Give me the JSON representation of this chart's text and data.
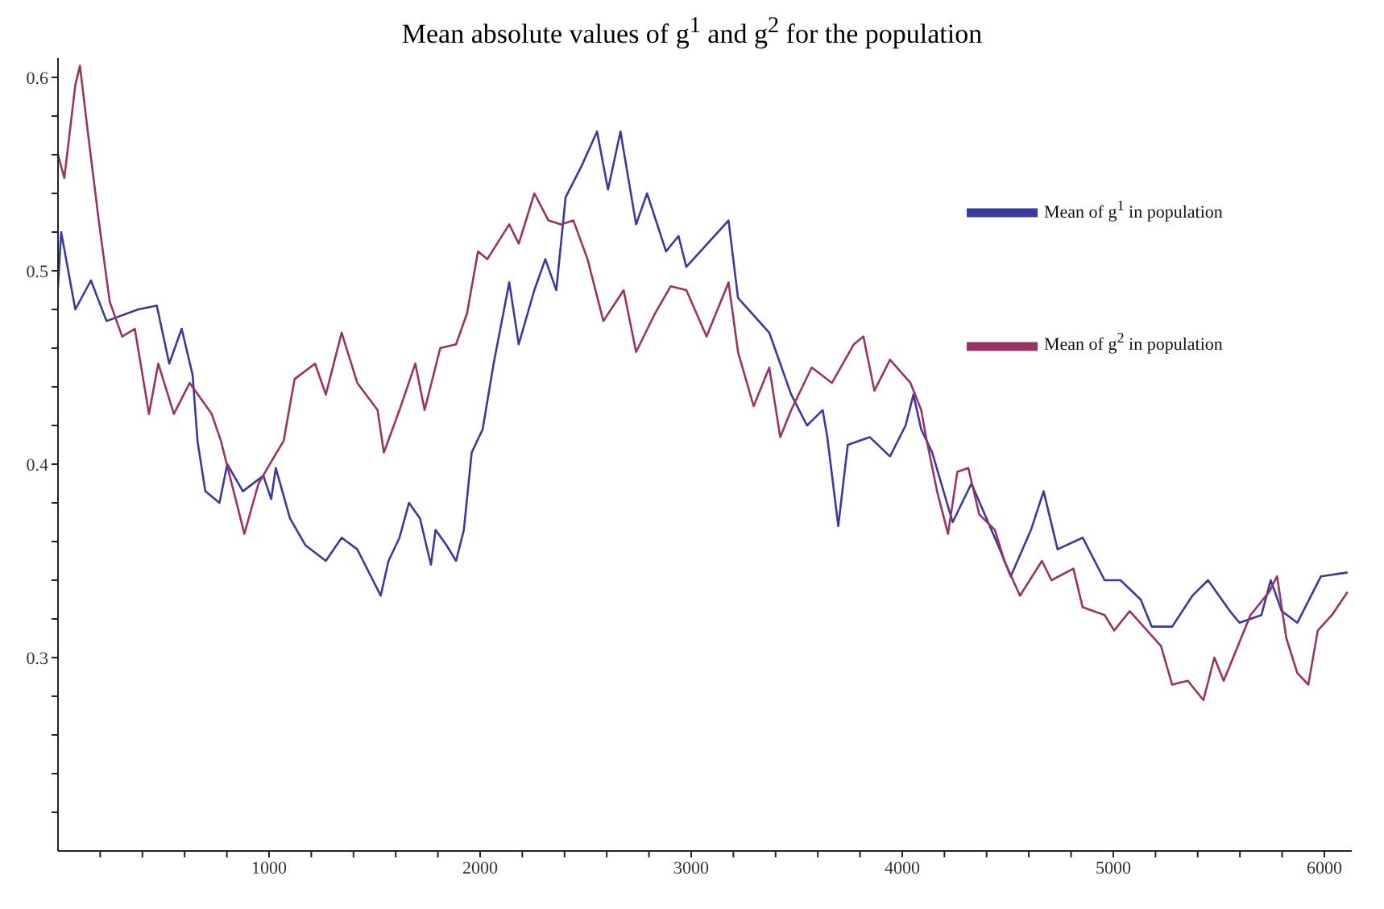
{
  "chart_data": {
    "type": "line",
    "title": "Mean absolute values of g$^{1}$ and g$^{2}$ for the population",
    "xlim": [
      0,
      6130
    ],
    "ylim": [
      0.2,
      0.61
    ],
    "xticks": [
      {
        "value": 200,
        "label": null
      },
      {
        "value": 400,
        "label": null
      },
      {
        "value": 600,
        "label": null
      },
      {
        "value": 800,
        "label": null
      },
      1000,
      {
        "value": 1200,
        "label": null
      },
      {
        "value": 1400,
        "label": null
      },
      {
        "value": 1600,
        "label": null
      },
      {
        "value": 1800,
        "label": null
      },
      2000,
      {
        "value": 2200,
        "label": null
      },
      {
        "value": 2400,
        "label": null
      },
      {
        "value": 2600,
        "label": null
      },
      {
        "value": 2800,
        "label": null
      },
      3000,
      {
        "value": 3200,
        "label": null
      },
      {
        "value": 3400,
        "label": null
      },
      {
        "value": 3600,
        "label": null
      },
      {
        "value": 3800,
        "label": null
      },
      4000,
      {
        "value": 4200,
        "label": null
      },
      {
        "value": 4400,
        "label": null
      },
      {
        "value": 4600,
        "label": null
      },
      {
        "value": 4800,
        "label": null
      },
      5000,
      {
        "value": 5200,
        "label": null
      },
      {
        "value": 5400,
        "label": null
      },
      {
        "value": 5600,
        "label": null
      },
      {
        "value": 5800,
        "label": null
      },
      6000
    ],
    "yticks": [
      {
        "value": 0.22,
        "label": null
      },
      {
        "value": 0.24,
        "label": null
      },
      {
        "value": 0.26,
        "label": null
      },
      {
        "value": 0.28,
        "label": null
      },
      0.3,
      {
        "value": 0.32,
        "label": null
      },
      {
        "value": 0.34,
        "label": null
      },
      {
        "value": 0.36,
        "label": null
      },
      {
        "value": 0.38,
        "label": null
      },
      0.4,
      {
        "value": 0.42,
        "label": null
      },
      {
        "value": 0.44,
        "label": null
      },
      {
        "value": 0.46,
        "label": null
      },
      {
        "value": 0.48,
        "label": null
      },
      0.5,
      {
        "value": 0.52,
        "label": null
      },
      {
        "value": 0.54,
        "label": null
      },
      {
        "value": 0.56,
        "label": null
      },
      {
        "value": 0.58,
        "label": null
      },
      0.6
    ],
    "legend": "top right",
    "marker": "none",
    "line_style": "solid",
    "grid": false,
    "series": [
      {
        "name": "Mean of g$^{1}$ in population",
        "color": "#3a3a9e",
        "x": [
          0,
          15,
          82,
          156,
          230,
          379,
          468,
          527,
          586,
          638,
          661,
          698,
          765,
          802,
          876,
          973,
          1010,
          1032,
          1099,
          1173,
          1269,
          1344,
          1418,
          1492,
          1529,
          1566,
          1618,
          1663,
          1715,
          1767,
          1789,
          1841,
          1886,
          1923,
          1960,
          2012,
          2064,
          2138,
          2183,
          2257,
          2309,
          2361,
          2405,
          2480,
          2554,
          2606,
          2665,
          2739,
          2791,
          2881,
          2940,
          2977,
          3177,
          3222,
          3370,
          3474,
          3549,
          3623,
          3645,
          3697,
          3742,
          3846,
          3942,
          4016,
          4053,
          4090,
          4142,
          4239,
          4328,
          4462,
          4514,
          4610,
          4670,
          4736,
          4855,
          4959,
          5034,
          5130,
          5182,
          5279,
          5375,
          5449,
          5553,
          5598,
          5702,
          5746,
          5798,
          5872,
          5984,
          6110
        ],
        "values": [
          0.492,
          0.52,
          0.48,
          0.495,
          0.474,
          0.48,
          0.482,
          0.452,
          0.47,
          0.446,
          0.412,
          0.386,
          0.38,
          0.4,
          0.386,
          0.394,
          0.382,
          0.398,
          0.372,
          0.358,
          0.35,
          0.362,
          0.356,
          0.34,
          0.332,
          0.35,
          0.362,
          0.38,
          0.372,
          0.348,
          0.366,
          0.358,
          0.35,
          0.366,
          0.406,
          0.418,
          0.452,
          0.494,
          0.462,
          0.49,
          0.506,
          0.49,
          0.538,
          0.554,
          0.572,
          0.542,
          0.572,
          0.524,
          0.54,
          0.51,
          0.518,
          0.502,
          0.526,
          0.486,
          0.468,
          0.436,
          0.42,
          0.428,
          0.414,
          0.368,
          0.41,
          0.414,
          0.404,
          0.42,
          0.436,
          0.418,
          0.406,
          0.37,
          0.39,
          0.356,
          0.342,
          0.366,
          0.386,
          0.356,
          0.362,
          0.34,
          0.34,
          0.33,
          0.316,
          0.316,
          0.332,
          0.34,
          0.324,
          0.318,
          0.322,
          0.34,
          0.324,
          0.318,
          0.342,
          0.344
        ]
      },
      {
        "name": "Mean of g$^{2}$ in population",
        "color": "#993366",
        "x": [
          0,
          30,
          82,
          104,
          141,
          193,
          245,
          304,
          364,
          431,
          475,
          549,
          624,
          728,
          772,
          883,
          950,
          1025,
          1069,
          1121,
          1218,
          1269,
          1344,
          1418,
          1514,
          1544,
          1618,
          1693,
          1737,
          1811,
          1886,
          1938,
          1990,
          2034,
          2138,
          2183,
          2257,
          2324,
          2383,
          2442,
          2509,
          2584,
          2680,
          2739,
          2829,
          2903,
          2977,
          3073,
          3177,
          3222,
          3296,
          3370,
          3422,
          3474,
          3571,
          3667,
          3771,
          3816,
          3868,
          3942,
          4039,
          4090,
          4113,
          4165,
          4217,
          4261,
          4313,
          4365,
          4439,
          4484,
          4558,
          4662,
          4707,
          4811,
          4855,
          4959,
          5004,
          5078,
          5226,
          5279,
          5353,
          5427,
          5479,
          5523,
          5598,
          5650,
          5739,
          5776,
          5820,
          5872,
          5924,
          5969,
          6036,
          6110
        ],
        "values": [
          0.56,
          0.548,
          0.596,
          0.606,
          0.572,
          0.526,
          0.484,
          0.466,
          0.47,
          0.426,
          0.452,
          0.426,
          0.442,
          0.426,
          0.412,
          0.364,
          0.39,
          0.404,
          0.412,
          0.444,
          0.452,
          0.436,
          0.468,
          0.442,
          0.428,
          0.406,
          0.428,
          0.452,
          0.428,
          0.46,
          0.462,
          0.478,
          0.51,
          0.506,
          0.524,
          0.514,
          0.54,
          0.526,
          0.524,
          0.526,
          0.506,
          0.474,
          0.49,
          0.458,
          0.478,
          0.492,
          0.49,
          0.466,
          0.494,
          0.458,
          0.43,
          0.45,
          0.414,
          0.428,
          0.45,
          0.442,
          0.462,
          0.466,
          0.438,
          0.454,
          0.442,
          0.428,
          0.414,
          0.386,
          0.364,
          0.396,
          0.398,
          0.374,
          0.366,
          0.35,
          0.332,
          0.35,
          0.34,
          0.346,
          0.326,
          0.322,
          0.314,
          0.324,
          0.306,
          0.286,
          0.288,
          0.278,
          0.3,
          0.288,
          0.308,
          0.322,
          0.334,
          0.342,
          0.31,
          0.292,
          0.286,
          0.314,
          0.322,
          0.334
        ]
      }
    ]
  }
}
